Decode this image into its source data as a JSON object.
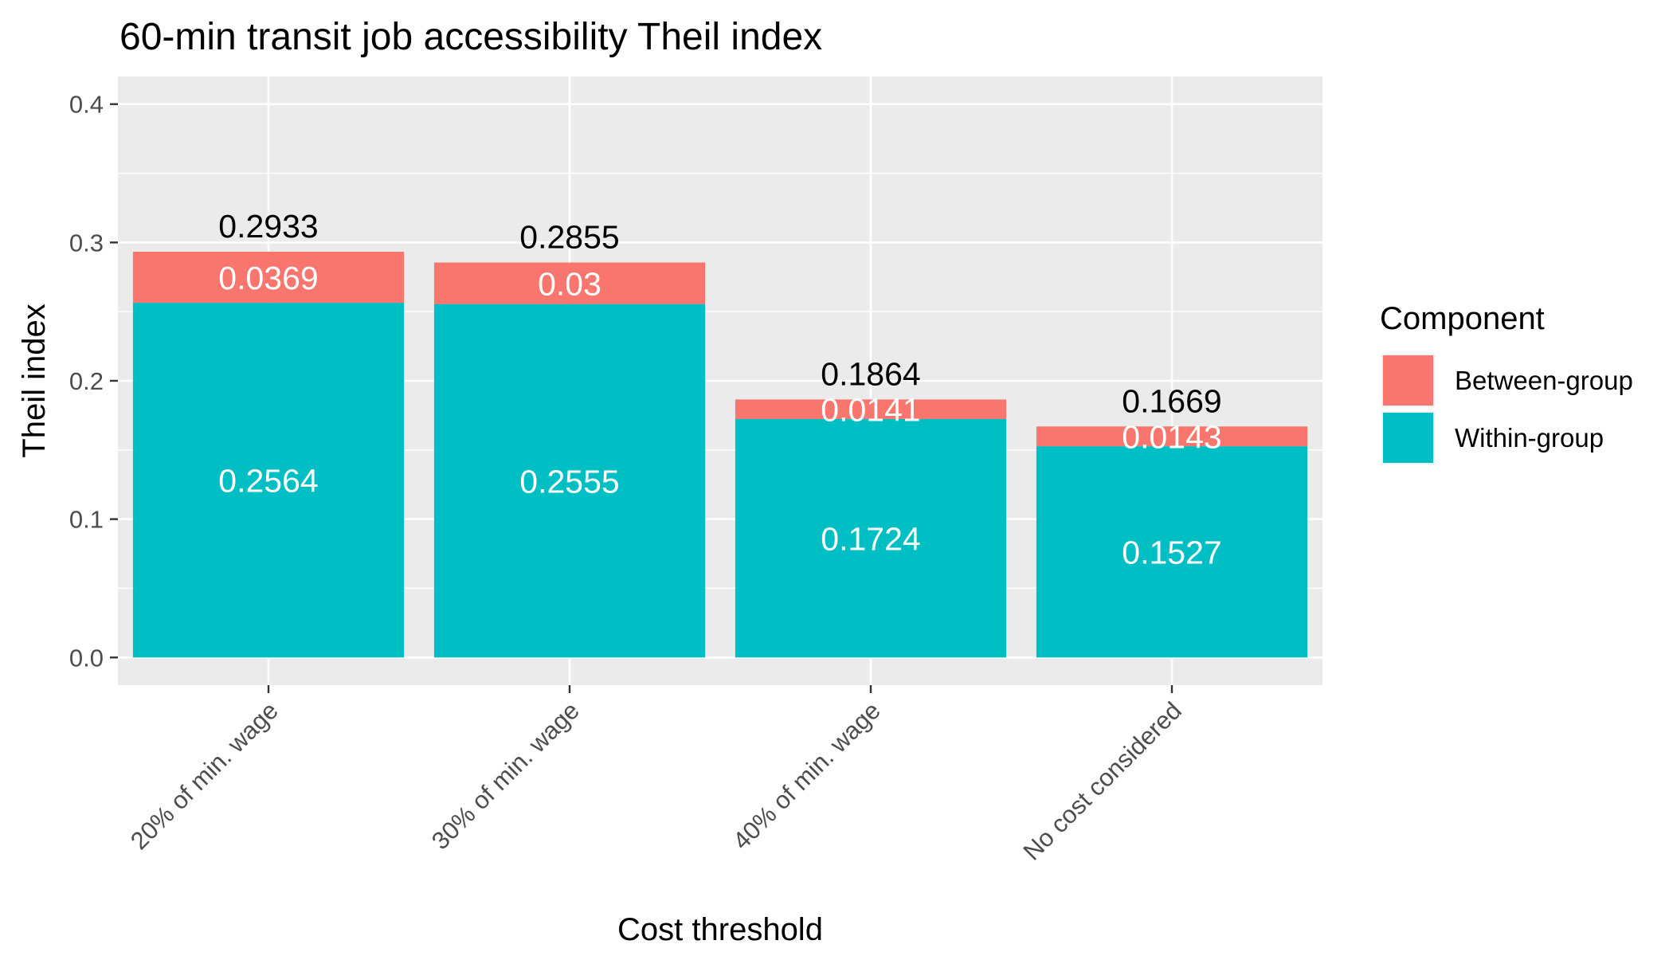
{
  "chart_data": {
    "type": "bar",
    "stacked": true,
    "title": "60-min transit job accessibility Theil index",
    "xlabel": "Cost threshold",
    "ylabel": "Theil index",
    "ylim": [
      -0.02,
      0.42
    ],
    "yticks": [
      "0.0",
      "0.1",
      "0.2",
      "0.3",
      "0.4"
    ],
    "grid": true,
    "categories": [
      "20% of min. wage",
      "30% of min. wage",
      "40% of min. wage",
      "No cost considered"
    ],
    "series": [
      {
        "name": "Within-group",
        "color": "#00BFC4",
        "values": [
          0.2564,
          0.2555,
          0.1724,
          0.1527
        ],
        "labels": [
          "0.2564",
          "0.2555",
          "0.1724",
          "0.1527"
        ]
      },
      {
        "name": "Between-group",
        "color": "#F8766D",
        "values": [
          0.0369,
          0.03,
          0.0141,
          0.0143
        ],
        "labels": [
          "0.0369",
          "0.03",
          "0.0141",
          "0.0143"
        ]
      }
    ],
    "totals": [
      0.2933,
      0.2855,
      0.1864,
      0.1669
    ],
    "total_labels": [
      "0.2933",
      "0.2855",
      "0.1864",
      "0.1669"
    ],
    "legend": {
      "title": "Component",
      "position": "right",
      "entries": [
        {
          "name": "Between-group",
          "color": "#F8766D"
        },
        {
          "name": "Within-group",
          "color": "#00BFC4"
        }
      ]
    },
    "colors": {
      "panel": "#EBEBEB",
      "grid": "#FFFFFF",
      "inside_label": "#FFFFFF",
      "total_label": "#000000"
    }
  }
}
